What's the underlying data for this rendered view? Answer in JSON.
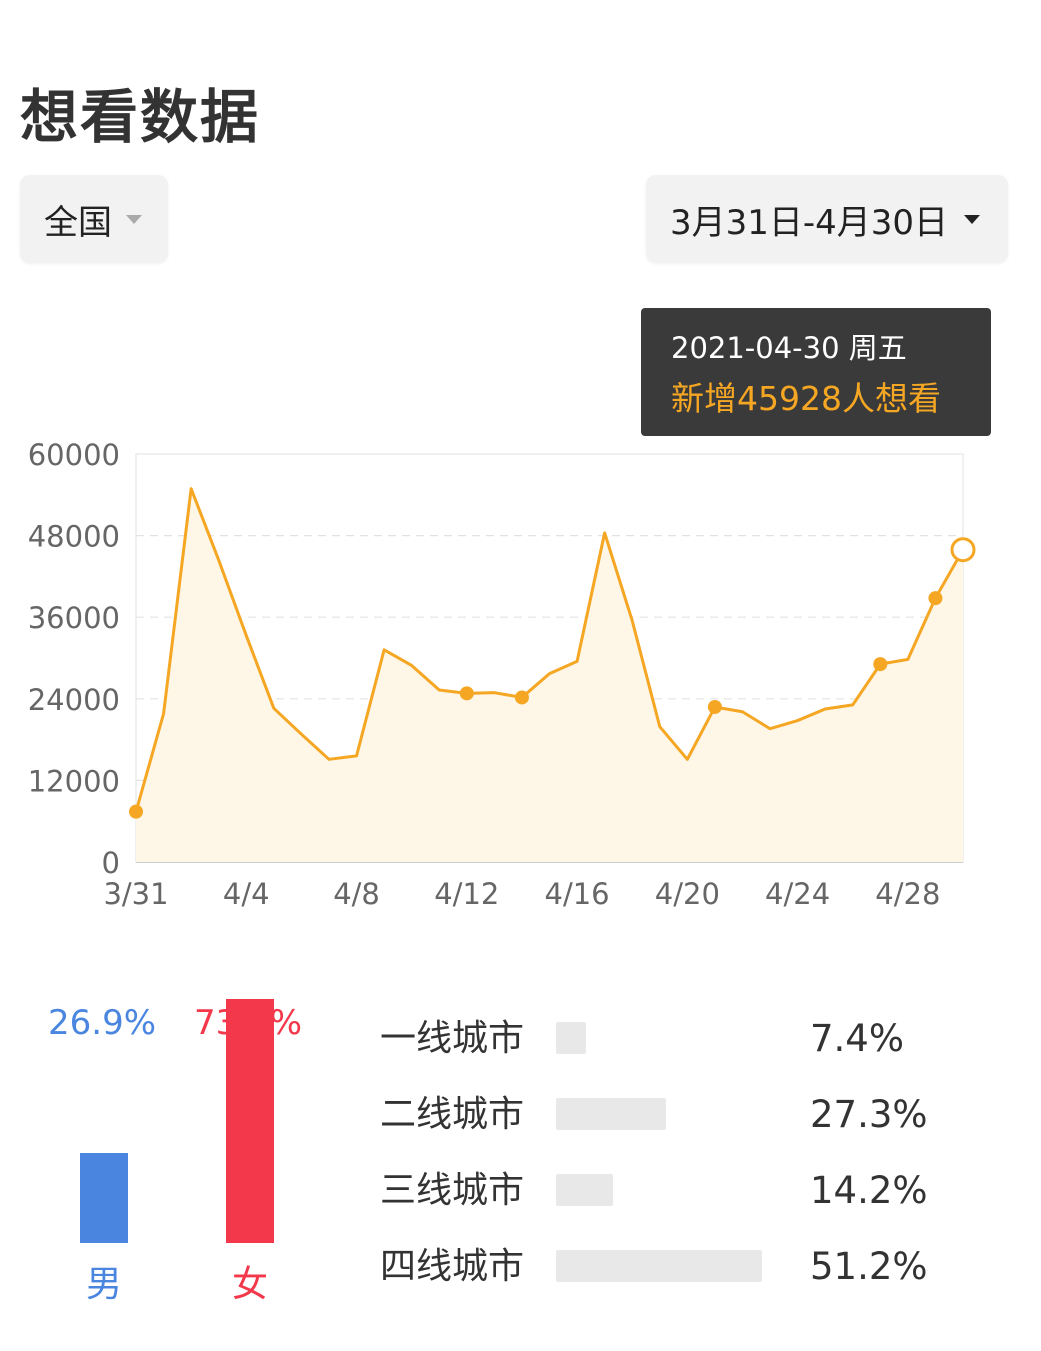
{
  "page": {
    "title": "想看数据"
  },
  "filters": {
    "region": "全国",
    "date_range": "3月31日-4月30日"
  },
  "tooltip": {
    "date": "2021-04-30 周五",
    "value_text": "新增45928人想看"
  },
  "colors": {
    "line": "#f5a623",
    "area": "#fef6e6",
    "male": "#4a86e0",
    "female": "#f2384a",
    "city_bar": "#e8e8e8"
  },
  "chart_data": {
    "type": "area",
    "x_tick_labels": [
      "3/31",
      "4/4",
      "4/8",
      "4/12",
      "4/16",
      "4/20",
      "4/24",
      "4/28"
    ],
    "y_tick_labels": [
      "60000",
      "48000",
      "36000",
      "24000",
      "12000",
      "0"
    ],
    "ylim": [
      0,
      60000
    ],
    "grid": true,
    "x": [
      "3/31",
      "4/1",
      "4/2",
      "4/3",
      "4/4",
      "4/5",
      "4/6",
      "4/7",
      "4/8",
      "4/9",
      "4/10",
      "4/11",
      "4/12",
      "4/13",
      "4/14",
      "4/15",
      "4/16",
      "4/17",
      "4/18",
      "4/19",
      "4/20",
      "4/21",
      "4/22",
      "4/23",
      "4/24",
      "4/25",
      "4/26",
      "4/27",
      "4/28",
      "4/29",
      "4/30"
    ],
    "values": [
      7400,
      21800,
      54900,
      44400,
      33300,
      22600,
      18800,
      15100,
      15600,
      31200,
      28900,
      25300,
      24800,
      24900,
      24200,
      27700,
      29500,
      48400,
      35500,
      19900,
      15100,
      22800,
      22100,
      19600,
      20800,
      22500,
      23100,
      29100,
      29800,
      38800,
      45928
    ],
    "highlighted_indices": [
      0,
      12,
      14,
      21,
      27,
      29
    ],
    "selected_index": 30
  },
  "gender": {
    "male": {
      "label": "男",
      "percent_text": "26.9%",
      "percent": 26.9
    },
    "female": {
      "label": "女",
      "percent_text": "73.1%",
      "percent": 73.1
    }
  },
  "cities": [
    {
      "label": "一线城市",
      "percent_text": "7.4%",
      "percent": 7.4
    },
    {
      "label": "二线城市",
      "percent_text": "27.3%",
      "percent": 27.3
    },
    {
      "label": "三线城市",
      "percent_text": "14.2%",
      "percent": 14.2
    },
    {
      "label": "四线城市",
      "percent_text": "51.2%",
      "percent": 51.2
    }
  ]
}
